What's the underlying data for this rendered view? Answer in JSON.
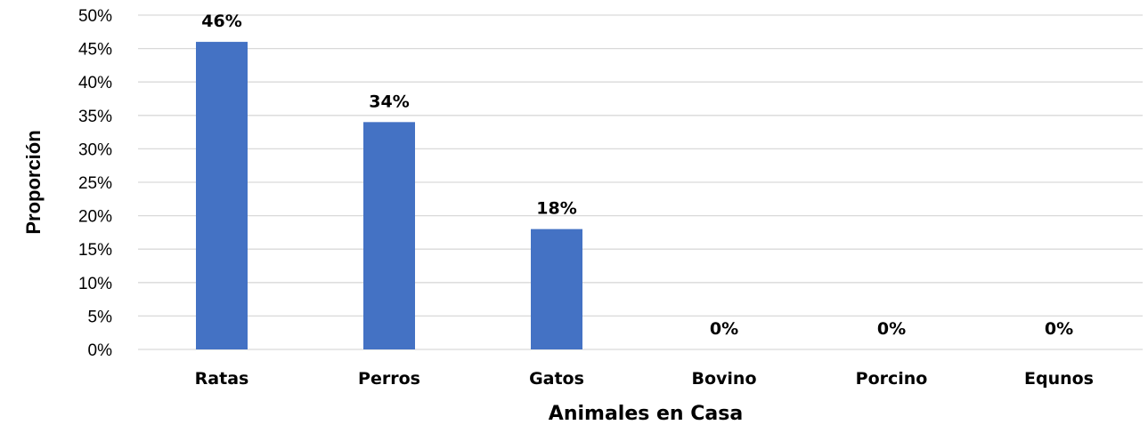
{
  "chart_data": {
    "type": "bar",
    "categories": [
      "Ratas",
      "Perros",
      "Gatos",
      "Bovino",
      "Porcino",
      "Equnos"
    ],
    "values": [
      0.46,
      0.34,
      0.18,
      0.0,
      0.0,
      0.0
    ],
    "data_labels": [
      "46%",
      "34%",
      "18%",
      "0%",
      "0%",
      "0%"
    ],
    "xlabel": "Animales en Casa",
    "ylabel": "Proporción",
    "ylim": [
      0,
      0.5
    ],
    "yticks": [
      0,
      0.05,
      0.1,
      0.15,
      0.2,
      0.25,
      0.3,
      0.35,
      0.4,
      0.45,
      0.5
    ],
    "ytick_labels": [
      "0%",
      "5%",
      "10%",
      "15%",
      "20%",
      "25%",
      "30%",
      "35%",
      "40%",
      "45%",
      "50%"
    ],
    "grid": true,
    "legend": "none",
    "bar_color": "#4472C4",
    "grid_color": "#D9D9D9"
  }
}
